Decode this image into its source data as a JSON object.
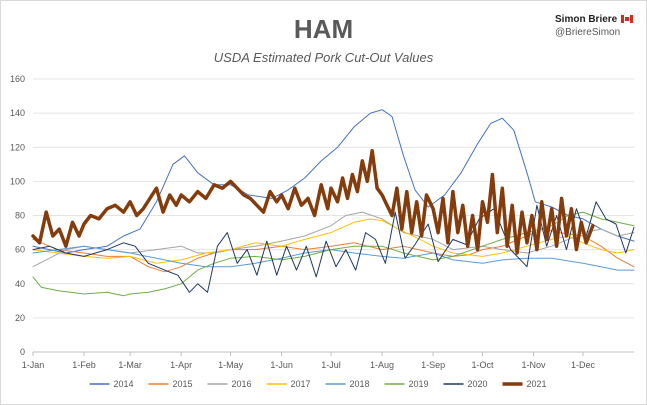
{
  "title": "HAM",
  "subtitle": "USDA Estimated Pork Cut-Out Values",
  "brand": {
    "name": "Simon Briere",
    "handle": "@BriereSimon"
  },
  "chart_data": {
    "type": "line",
    "title": "HAM",
    "subtitle": "USDA Estimated Pork Cut-Out Values",
    "xlabel": "",
    "ylabel": "",
    "ylim": [
      0,
      160
    ],
    "yticks": [
      0,
      20,
      40,
      60,
      80,
      100,
      120,
      140,
      160
    ],
    "xlim": [
      0,
      365
    ],
    "x_tick_labels": [
      "1-Jan",
      "1-Feb",
      "1-Mar",
      "1-Apr",
      "1-May",
      "1-Jun",
      "1-Jul",
      "1-Aug",
      "1-Sep",
      "1-Oct",
      "1-Nov",
      "1-Dec"
    ],
    "x_tick_days": [
      0,
      31,
      59,
      90,
      120,
      151,
      181,
      212,
      243,
      273,
      304,
      334
    ],
    "x_unit": "day of year",
    "grid": "horizontal",
    "legend_position": "bottom",
    "series": [
      {
        "name": "2014",
        "color": "#4472c4",
        "width": 1,
        "x": [
          0,
          10,
          20,
          31,
          45,
          55,
          65,
          75,
          85,
          92,
          100,
          110,
          120,
          131,
          145,
          155,
          165,
          175,
          185,
          195,
          205,
          212,
          218,
          225,
          232,
          240,
          250,
          260,
          270,
          278,
          285,
          292,
          300,
          305,
          315,
          325,
          334,
          345,
          355,
          365
        ],
        "values": [
          62,
          60,
          58,
          60,
          62,
          68,
          72,
          88,
          110,
          115,
          105,
          98,
          98,
          92,
          90,
          95,
          102,
          112,
          120,
          132,
          140,
          142,
          138,
          115,
          95,
          85,
          92,
          105,
          122,
          134,
          137,
          130,
          105,
          88,
          85,
          80,
          78,
          72,
          68,
          65
        ]
      },
      {
        "name": "2015",
        "color": "#ed7d31",
        "width": 1,
        "x": [
          0,
          15,
          31,
          45,
          59,
          70,
          80,
          90,
          100,
          110,
          120,
          135,
          151,
          165,
          181,
          195,
          212,
          225,
          243,
          255,
          265,
          273,
          285,
          300,
          310,
          320,
          334,
          345,
          355,
          365
        ],
        "values": [
          66,
          60,
          58,
          56,
          56,
          50,
          47,
          50,
          55,
          58,
          60,
          60,
          62,
          60,
          62,
          64,
          60,
          62,
          58,
          56,
          57,
          60,
          62,
          68,
          72,
          70,
          68,
          62,
          55,
          50
        ]
      },
      {
        "name": "2016",
        "color": "#a5a5a5",
        "width": 1,
        "x": [
          0,
          10,
          20,
          31,
          45,
          59,
          75,
          90,
          100,
          110,
          120,
          135,
          151,
          165,
          181,
          190,
          200,
          212,
          225,
          243,
          255,
          273,
          285,
          300,
          315,
          325,
          334,
          345,
          355,
          365
        ],
        "values": [
          50,
          55,
          60,
          62,
          60,
          58,
          60,
          62,
          58,
          58,
          60,
          62,
          65,
          68,
          74,
          80,
          82,
          78,
          70,
          66,
          60,
          62,
          60,
          58,
          62,
          66,
          70,
          72,
          68,
          70
        ]
      },
      {
        "name": "2017",
        "color": "#ffc000",
        "width": 1,
        "x": [
          0,
          15,
          31,
          45,
          59,
          75,
          90,
          105,
          120,
          135,
          151,
          165,
          181,
          195,
          205,
          212,
          222,
          235,
          243,
          255,
          273,
          285,
          300,
          315,
          325,
          334,
          345,
          355,
          365
        ],
        "values": [
          60,
          58,
          56,
          55,
          56,
          52,
          54,
          58,
          60,
          64,
          62,
          66,
          70,
          76,
          78,
          77,
          72,
          66,
          62,
          58,
          56,
          58,
          62,
          66,
          68,
          64,
          60,
          58,
          60
        ]
      },
      {
        "name": "2018",
        "color": "#5b9bd5",
        "width": 1,
        "x": [
          0,
          15,
          31,
          45,
          59,
          75,
          90,
          105,
          120,
          135,
          151,
          165,
          181,
          195,
          212,
          225,
          243,
          255,
          273,
          285,
          300,
          315,
          334,
          345,
          355,
          365
        ],
        "values": [
          58,
          60,
          62,
          60,
          58,
          55,
          52,
          50,
          50,
          52,
          55,
          58,
          60,
          58,
          56,
          55,
          58,
          54,
          52,
          54,
          55,
          55,
          52,
          50,
          48,
          48
        ]
      },
      {
        "name": "2019",
        "color": "#70ad47",
        "width": 1,
        "x": [
          0,
          5,
          15,
          31,
          45,
          55,
          59,
          70,
          80,
          90,
          100,
          110,
          120,
          135,
          151,
          165,
          181,
          195,
          212,
          225,
          243,
          255,
          273,
          285,
          300,
          315,
          325,
          334,
          345,
          355,
          365
        ],
        "values": [
          44,
          38,
          36,
          34,
          35,
          33,
          34,
          35,
          37,
          40,
          48,
          52,
          55,
          56,
          54,
          56,
          60,
          62,
          62,
          58,
          54,
          56,
          62,
          66,
          70,
          74,
          80,
          82,
          78,
          76,
          74
        ]
      },
      {
        "name": "2020",
        "color": "#203864",
        "width": 1,
        "x": [
          0,
          10,
          20,
          31,
          45,
          55,
          62,
          70,
          80,
          88,
          95,
          100,
          106,
          112,
          118,
          124,
          130,
          136,
          142,
          148,
          154,
          160,
          166,
          172,
          178,
          184,
          190,
          196,
          202,
          208,
          214,
          220,
          226,
          232,
          240,
          246,
          255,
          263,
          271,
          280,
          290,
          300,
          306,
          312,
          318,
          324,
          330,
          336,
          342,
          348,
          354,
          360,
          365
        ],
        "values": [
          60,
          62,
          58,
          56,
          60,
          64,
          62,
          52,
          48,
          45,
          35,
          40,
          35,
          62,
          70,
          52,
          60,
          45,
          65,
          45,
          62,
          48,
          62,
          44,
          65,
          50,
          60,
          48,
          70,
          66,
          52,
          82,
          55,
          63,
          75,
          53,
          66,
          63,
          78,
          84,
          60,
          50,
          86,
          62,
          80,
          60,
          84,
          68,
          88,
          78,
          75,
          58,
          73
        ]
      },
      {
        "name": "2021",
        "color": "#843c0c",
        "width": 3.5,
        "x": [
          0,
          4,
          8,
          12,
          16,
          20,
          24,
          28,
          31,
          35,
          40,
          45,
          50,
          55,
          59,
          63,
          67,
          71,
          75,
          79,
          83,
          87,
          90,
          95,
          100,
          105,
          110,
          115,
          120,
          124,
          128,
          132,
          136,
          140,
          144,
          148,
          151,
          155,
          159,
          163,
          167,
          171,
          175,
          179,
          181,
          185,
          188,
          191,
          194,
          197,
          200,
          203,
          206,
          209,
          212,
          215,
          218,
          221,
          224,
          227,
          230,
          233,
          236,
          239,
          243,
          246,
          249,
          252,
          255,
          258,
          261,
          264,
          267,
          270,
          273,
          276,
          279,
          282,
          285,
          288,
          291,
          294,
          297,
          300,
          303,
          306,
          309,
          312,
          315,
          318,
          321,
          324,
          327,
          330,
          333,
          336,
          340
        ],
        "values": [
          68,
          64,
          82,
          68,
          72,
          62,
          76,
          68,
          75,
          80,
          78,
          84,
          86,
          82,
          88,
          80,
          84,
          90,
          96,
          82,
          92,
          86,
          92,
          88,
          94,
          90,
          98,
          96,
          100,
          96,
          92,
          90,
          86,
          82,
          94,
          88,
          92,
          84,
          96,
          86,
          90,
          80,
          98,
          84,
          96,
          88,
          102,
          90,
          104,
          94,
          112,
          100,
          118,
          96,
          92,
          86,
          80,
          96,
          72,
          94,
          70,
          88,
          68,
          92,
          84,
          70,
          90,
          64,
          94,
          70,
          86,
          62,
          80,
          60,
          88,
          76,
          104,
          70,
          96,
          62,
          86,
          58,
          82,
          64,
          80,
          60,
          88,
          66,
          84,
          62,
          90,
          68,
          84,
          60,
          76,
          64,
          74
        ]
      }
    ]
  }
}
